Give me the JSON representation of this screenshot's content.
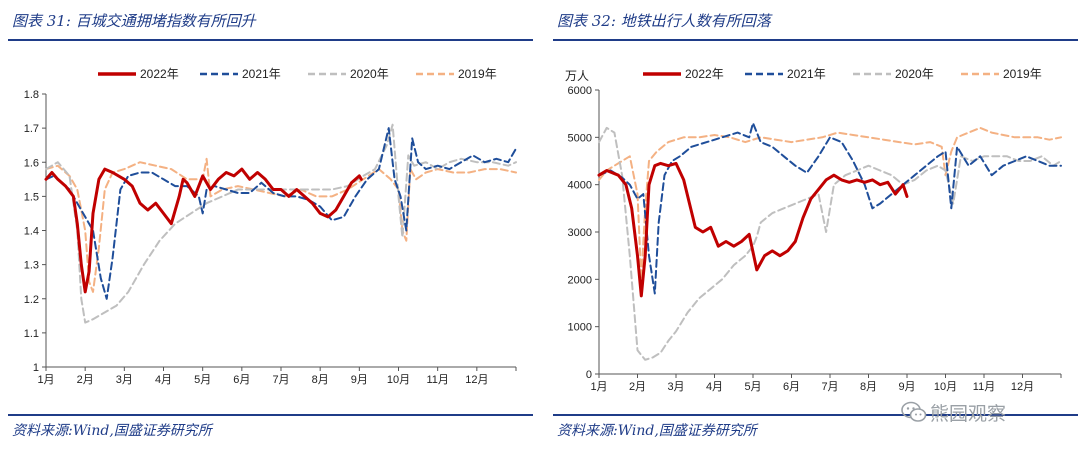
{
  "left": {
    "title": "图表 31:  百城交通拥堵指数有所回升",
    "source": "资料来源:Wind,国盛证券研究所"
  },
  "right": {
    "title": "图表 32:  地铁出行人数有所回落",
    "source": "资料来源:Wind,国盛证券研究所"
  },
  "watermark": {
    "text": "熊园观察",
    "icon": "wechat-icon"
  },
  "colors": {
    "y2022": "#c00000",
    "y2021": "#1f4e9a",
    "y2020": "#bfbfbf",
    "y2019": "#f4b183",
    "accent": "#1f3c88"
  },
  "chart_data": [
    {
      "type": "line",
      "xlabel": "",
      "ylabel": "",
      "categories": [
        "1月",
        "2月",
        "3月",
        "4月",
        "5月",
        "6月",
        "7月",
        "8月",
        "9月",
        "10月",
        "11月",
        "12月"
      ],
      "yticks": [
        "1",
        "1.1",
        "1.2",
        "1.3",
        "1.4",
        "1.5",
        "1.6",
        "1.7",
        "1.8"
      ],
      "ylim": [
        1,
        1.8
      ],
      "xlim": [
        1,
        13
      ],
      "legend": "top",
      "series": [
        {
          "name": "2022年",
          "color": "#c00000",
          "dash": "",
          "width": 3,
          "x": [
            1,
            1.15,
            1.3,
            1.5,
            1.7,
            1.8,
            1.9,
            2.0,
            2.1,
            2.2,
            2.35,
            2.5,
            2.7,
            3.0,
            3.2,
            3.4,
            3.6,
            3.8,
            4.0,
            4.2,
            4.4,
            4.5,
            4.6,
            4.8,
            5.0,
            5.2,
            5.4,
            5.6,
            5.8,
            6.0,
            6.2,
            6.4,
            6.6,
            6.8,
            7.0,
            7.2,
            7.4,
            7.6,
            7.8,
            8.0,
            8.2,
            8.4,
            8.6,
            8.8,
            9.0,
            9.05
          ],
          "y": [
            1.55,
            1.57,
            1.55,
            1.53,
            1.5,
            1.42,
            1.3,
            1.22,
            1.28,
            1.45,
            1.55,
            1.58,
            1.57,
            1.55,
            1.53,
            1.48,
            1.46,
            1.48,
            1.45,
            1.42,
            1.5,
            1.55,
            1.54,
            1.5,
            1.56,
            1.52,
            1.55,
            1.57,
            1.56,
            1.58,
            1.55,
            1.57,
            1.55,
            1.52,
            1.52,
            1.5,
            1.52,
            1.5,
            1.48,
            1.45,
            1.44,
            1.46,
            1.5,
            1.54,
            1.56,
            1.55
          ]
        },
        {
          "name": "2021年",
          "color": "#1f4e9a",
          "dash": "7,4",
          "width": 2,
          "x": [
            1,
            1.2,
            1.4,
            1.6,
            1.8,
            2.0,
            2.2,
            2.4,
            2.55,
            2.7,
            2.9,
            3.1,
            3.4,
            3.7,
            4.0,
            4.3,
            4.6,
            4.9,
            5.0,
            5.1,
            5.3,
            5.6,
            5.9,
            6.2,
            6.5,
            6.8,
            7.1,
            7.4,
            7.7,
            8.0,
            8.3,
            8.6,
            8.9,
            9.2,
            9.5,
            9.75,
            9.9,
            10.05,
            10.2,
            10.35,
            10.5,
            10.7,
            11.0,
            11.3,
            11.6,
            11.9,
            12.2,
            12.5,
            12.8,
            13.0
          ],
          "y": [
            1.55,
            1.56,
            1.54,
            1.52,
            1.48,
            1.44,
            1.4,
            1.26,
            1.2,
            1.32,
            1.52,
            1.56,
            1.57,
            1.57,
            1.55,
            1.53,
            1.53,
            1.5,
            1.45,
            1.52,
            1.53,
            1.52,
            1.51,
            1.51,
            1.54,
            1.51,
            1.5,
            1.5,
            1.49,
            1.47,
            1.43,
            1.44,
            1.5,
            1.55,
            1.58,
            1.7,
            1.55,
            1.5,
            1.4,
            1.67,
            1.6,
            1.58,
            1.59,
            1.58,
            1.6,
            1.62,
            1.6,
            1.61,
            1.6,
            1.64
          ]
        },
        {
          "name": "2020年",
          "color": "#bfbfbf",
          "dash": "7,4",
          "width": 2,
          "x": [
            1,
            1.3,
            1.6,
            1.8,
            1.9,
            2.0,
            2.2,
            2.5,
            2.8,
            3.1,
            3.5,
            3.9,
            4.3,
            4.7,
            5.1,
            5.5,
            5.9,
            6.3,
            6.7,
            7.1,
            7.5,
            7.9,
            8.3,
            8.7,
            9.1,
            9.4,
            9.7,
            9.85,
            10.0,
            10.1,
            10.25,
            10.4,
            10.7,
            11.0,
            11.3,
            11.6,
            12.0,
            12.4,
            12.8,
            13.0
          ],
          "y": [
            1.58,
            1.6,
            1.56,
            1.4,
            1.2,
            1.13,
            1.14,
            1.16,
            1.18,
            1.22,
            1.3,
            1.37,
            1.42,
            1.45,
            1.48,
            1.5,
            1.52,
            1.52,
            1.52,
            1.52,
            1.52,
            1.52,
            1.52,
            1.53,
            1.56,
            1.58,
            1.65,
            1.71,
            1.5,
            1.38,
            1.62,
            1.59,
            1.6,
            1.58,
            1.6,
            1.61,
            1.6,
            1.6,
            1.59,
            1.6
          ]
        },
        {
          "name": "2019年",
          "color": "#f4b183",
          "dash": "7,4",
          "width": 2,
          "x": [
            1,
            1.3,
            1.6,
            1.8,
            2.0,
            2.1,
            2.2,
            2.35,
            2.5,
            2.7,
            3.0,
            3.4,
            3.8,
            4.2,
            4.6,
            5.0,
            5.1,
            5.2,
            5.5,
            5.9,
            6.3,
            6.7,
            7.1,
            7.5,
            7.9,
            8.3,
            8.7,
            9.1,
            9.5,
            9.8,
            10.0,
            10.1,
            10.2,
            10.3,
            10.45,
            10.7,
            11.0,
            11.4,
            11.8,
            12.2,
            12.6,
            13.0
          ],
          "y": [
            1.58,
            1.59,
            1.56,
            1.52,
            1.4,
            1.25,
            1.22,
            1.35,
            1.52,
            1.57,
            1.58,
            1.6,
            1.59,
            1.58,
            1.55,
            1.55,
            1.61,
            1.5,
            1.52,
            1.53,
            1.52,
            1.51,
            1.5,
            1.52,
            1.5,
            1.5,
            1.52,
            1.55,
            1.58,
            1.55,
            1.52,
            1.4,
            1.37,
            1.58,
            1.55,
            1.57,
            1.58,
            1.57,
            1.57,
            1.58,
            1.58,
            1.57
          ]
        }
      ]
    },
    {
      "type": "line",
      "xlabel": "",
      "ylabel": "万人",
      "categories": [
        "1月",
        "2月",
        "3月",
        "4月",
        "5月",
        "6月",
        "7月",
        "8月",
        "9月",
        "10月",
        "11月",
        "12月"
      ],
      "yticks": [
        "0",
        "1000",
        "2000",
        "3000",
        "4000",
        "5000",
        "6000"
      ],
      "ylim": [
        0,
        6000
      ],
      "xlim": [
        1,
        13
      ],
      "legend": "top",
      "series": [
        {
          "name": "2022年",
          "color": "#c00000",
          "dash": "",
          "width": 3,
          "x": [
            1,
            1.2,
            1.5,
            1.7,
            1.85,
            2.0,
            2.1,
            2.2,
            2.3,
            2.45,
            2.6,
            2.8,
            3.0,
            3.2,
            3.35,
            3.5,
            3.7,
            3.9,
            4.1,
            4.3,
            4.5,
            4.7,
            4.9,
            5.1,
            5.3,
            5.5,
            5.7,
            5.9,
            6.1,
            6.3,
            6.5,
            6.7,
            6.9,
            7.1,
            7.3,
            7.5,
            7.7,
            7.9,
            8.1,
            8.3,
            8.5,
            8.7,
            8.9,
            9.0
          ],
          "y": [
            4200,
            4300,
            4200,
            4000,
            3500,
            2500,
            1650,
            2500,
            4000,
            4400,
            4450,
            4400,
            4450,
            4100,
            3600,
            3100,
            3000,
            3100,
            2700,
            2800,
            2700,
            2800,
            2950,
            2200,
            2500,
            2600,
            2500,
            2600,
            2800,
            3300,
            3700,
            3900,
            4100,
            4200,
            4100,
            4050,
            4100,
            4050,
            4100,
            4000,
            4050,
            3800,
            4000,
            3750
          ]
        },
        {
          "name": "2021年",
          "color": "#1f4e9a",
          "dash": "7,4",
          "width": 2,
          "x": [
            1,
            1.3,
            1.6,
            1.8,
            2.0,
            2.15,
            2.3,
            2.45,
            2.55,
            2.7,
            2.9,
            3.1,
            3.4,
            3.8,
            4.2,
            4.6,
            4.9,
            5.0,
            5.2,
            5.5,
            5.8,
            6.1,
            6.4,
            6.7,
            7.0,
            7.3,
            7.6,
            7.9,
            8.1,
            8.3,
            8.6,
            8.9,
            9.2,
            9.5,
            9.8,
            10.0,
            10.15,
            10.3,
            10.6,
            10.9,
            11.2,
            11.5,
            11.8,
            12.1,
            12.4,
            12.7,
            13.0
          ],
          "y": [
            4200,
            4300,
            4150,
            4000,
            3700,
            3800,
            2500,
            1700,
            3200,
            4200,
            4500,
            4600,
            4800,
            4900,
            5000,
            5100,
            5000,
            5300,
            4900,
            4800,
            4600,
            4400,
            4250,
            4600,
            5000,
            4900,
            4500,
            4000,
            3500,
            3600,
            3800,
            4000,
            4200,
            4400,
            4600,
            4700,
            3500,
            4800,
            4400,
            4600,
            4200,
            4400,
            4500,
            4600,
            4500,
            4400,
            4400
          ]
        },
        {
          "name": "2020年",
          "color": "#bfbfbf",
          "dash": "7,4",
          "width": 2,
          "x": [
            1,
            1.2,
            1.4,
            1.6,
            1.8,
            2.0,
            2.1,
            2.2,
            2.4,
            2.6,
            2.8,
            3.0,
            3.3,
            3.6,
            3.9,
            4.2,
            4.5,
            4.8,
            5.0,
            5.1,
            5.2,
            5.5,
            5.8,
            6.1,
            6.4,
            6.7,
            6.9,
            7.1,
            7.4,
            7.7,
            8.0,
            8.3,
            8.6,
            8.9,
            9.2,
            9.5,
            9.8,
            10.0,
            10.2,
            10.4,
            10.7,
            11.0,
            11.3,
            11.6,
            11.9,
            12.2,
            12.5,
            12.8,
            13.0
          ],
          "y": [
            4900,
            5200,
            5100,
            4200,
            2500,
            500,
            400,
            300,
            350,
            450,
            700,
            900,
            1300,
            1600,
            1800,
            2000,
            2300,
            2500,
            2700,
            2900,
            3200,
            3400,
            3500,
            3600,
            3700,
            3800,
            3000,
            4000,
            4200,
            4300,
            4400,
            4300,
            4200,
            4000,
            4100,
            4300,
            4400,
            4300,
            3600,
            4600,
            4500,
            4600,
            4600,
            4600,
            4500,
            4500,
            4600,
            4400,
            4500
          ]
        },
        {
          "name": "2019年",
          "color": "#f4b183",
          "dash": "7,4",
          "width": 2,
          "x": [
            1,
            1.2,
            1.4,
            1.6,
            1.8,
            2.0,
            2.1,
            2.2,
            2.3,
            2.5,
            2.8,
            3.2,
            3.6,
            4.0,
            4.4,
            4.8,
            5.2,
            5.6,
            6.0,
            6.4,
            6.8,
            7.2,
            7.6,
            8.0,
            8.4,
            8.8,
            9.2,
            9.6,
            9.9,
            10.0,
            10.15,
            10.3,
            10.6,
            10.9,
            11.2,
            11.5,
            11.8,
            12.1,
            12.4,
            12.7,
            13.0
          ],
          "y": [
            4100,
            4300,
            4400,
            4500,
            4600,
            3800,
            2000,
            3500,
            4500,
            4700,
            4900,
            5000,
            5000,
            5050,
            5000,
            4900,
            5000,
            4950,
            4900,
            4950,
            5000,
            5100,
            5050,
            5000,
            4950,
            4900,
            4850,
            4900,
            4800,
            4200,
            4700,
            5000,
            5100,
            5200,
            5100,
            5050,
            5000,
            5000,
            5000,
            4950,
            5000
          ]
        }
      ]
    }
  ]
}
